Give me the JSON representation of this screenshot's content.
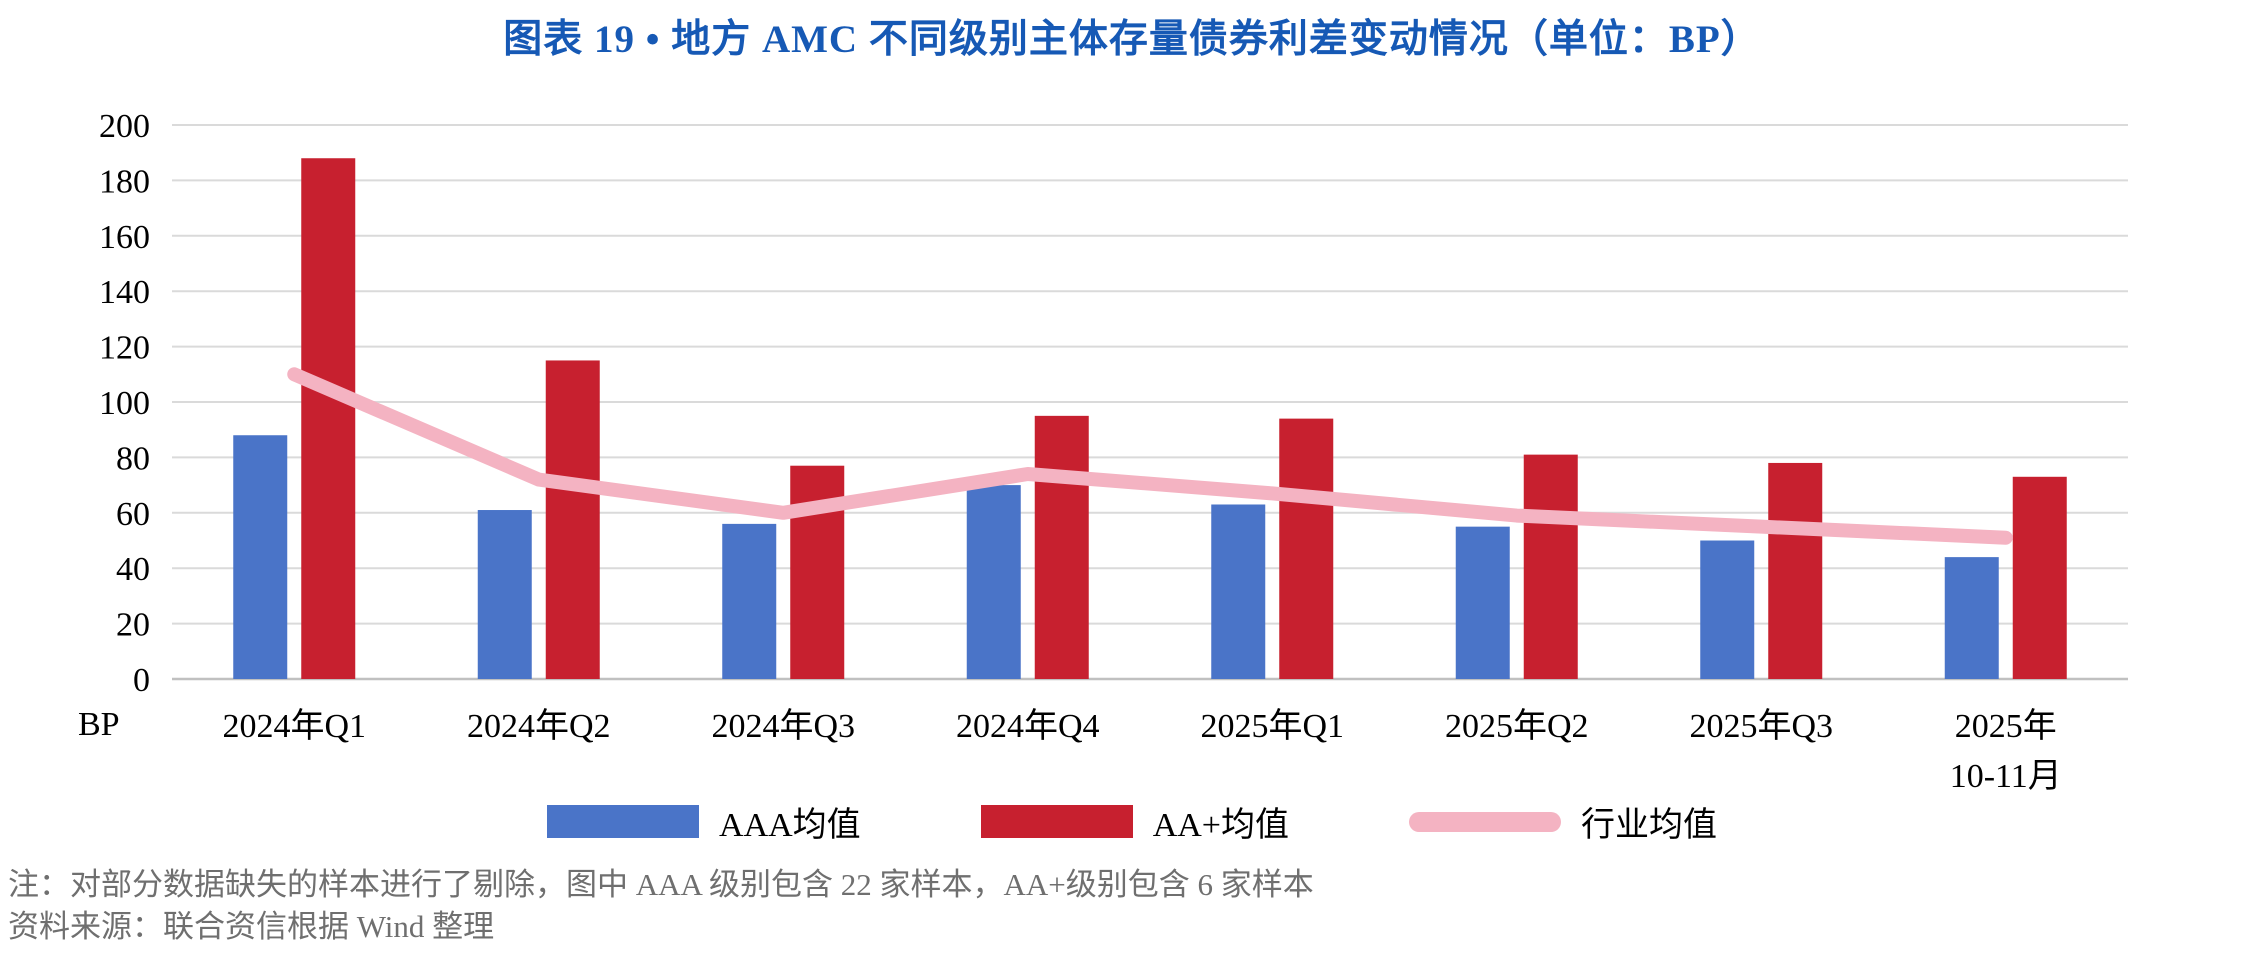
{
  "title": "图表 19 • 地方 AMC 不同级别主体存量债券利差变动情况（单位：BP）",
  "colors": {
    "title": "#1659B5",
    "aaa_bar": "#4A74C8",
    "aaplus_bar": "#C7202F",
    "industry_line": "#F4B3C2",
    "gridline": "#DADADA",
    "axis_line": "#C0C0C0",
    "tick_text": "#000000",
    "note_text": "#6F6F6F"
  },
  "chart_data": {
    "type": "bar",
    "subtype": "grouped-bars-with-line-overlay",
    "title": "图表 19 • 地方 AMC 不同级别主体存量债券利差变动情况（单位：BP）",
    "categories": [
      "2024年Q1",
      "2024年Q2",
      "2024年Q3",
      "2024年Q4",
      "2025年Q1",
      "2025年Q2",
      "2025年Q3",
      "2025年\n10-11月"
    ],
    "series": [
      {
        "name": "AAA均值",
        "kind": "bar",
        "color": "#4A74C8",
        "values": [
          88,
          61,
          56,
          70,
          63,
          55,
          50,
          44
        ]
      },
      {
        "name": "AA+均值",
        "kind": "bar",
        "color": "#C7202F",
        "values": [
          188,
          115,
          77,
          95,
          94,
          81,
          78,
          73
        ]
      },
      {
        "name": "行业均值",
        "kind": "line",
        "color": "#F4B3C2",
        "values": [
          110,
          72,
          60,
          74,
          67,
          59,
          55,
          51
        ]
      }
    ],
    "xlabel": "",
    "ylabel": "BP",
    "ylim": [
      0,
      200
    ],
    "ytick_step": 20,
    "grid": true,
    "legend_position": "bottom"
  },
  "notes": [
    "注：对部分数据缺失的样本进行了剔除，图中 AAA 级别包含 22 家样本，AA+级别包含 6 家样本",
    "资料来源：联合资信根据 Wind 整理"
  ]
}
